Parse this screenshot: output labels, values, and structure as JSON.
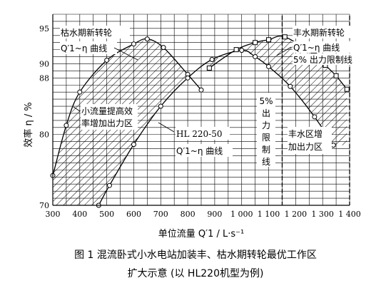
{
  "chart_data": {
    "type": "line",
    "title": "",
    "xlabel": "单位流量 Q′1 / L·s⁻¹",
    "ylabel": "效率 η / %",
    "xlim": [
      300,
      1400
    ],
    "ylim": [
      70,
      97
    ],
    "x_ticks": [
      300,
      400,
      500,
      600,
      700,
      800,
      900,
      1000,
      1100,
      1200,
      1300,
      1400
    ],
    "x_tick_labels": [
      "300",
      "400",
      "500",
      "600",
      "700",
      "800",
      "900",
      "1 000",
      "1 100",
      "1 200",
      "1 300",
      "1 400"
    ],
    "y_ticks": [
      70,
      80,
      88,
      90,
      95
    ],
    "grid": true,
    "series": [
      {
        "name": "枯水期新转轮 Q′1~η 曲线",
        "marker": "circle",
        "points": [
          [
            300,
            74.2
          ],
          [
            350,
            81.3
          ],
          [
            400,
            86.0
          ],
          [
            500,
            90.5
          ],
          [
            600,
            92.8
          ],
          [
            650,
            93.5
          ],
          [
            710,
            92.3
          ],
          [
            800,
            88.5
          ],
          [
            850,
            86.3
          ]
        ]
      },
      {
        "name": "HL 220-50 Q′1~η 曲线",
        "marker": "circle",
        "points": [
          [
            470,
            70.0
          ],
          [
            510,
            72.8
          ],
          [
            600,
            78.6
          ],
          [
            700,
            84.0
          ],
          [
            800,
            88.0
          ],
          [
            890,
            90.6
          ],
          [
            1000,
            91.9
          ],
          [
            1050,
            91.0
          ],
          [
            1100,
            89.6
          ],
          [
            1180,
            86.8
          ],
          [
            1270,
            82.5
          ],
          [
            1340,
            78.5
          ]
        ]
      },
      {
        "name": "丰水期新转轮 Q′1~η 曲线",
        "marker": "square",
        "points": [
          [
            880,
            89.4
          ],
          [
            980,
            92.0
          ],
          [
            1050,
            93.0
          ],
          [
            1100,
            93.4
          ],
          [
            1160,
            93.8
          ],
          [
            1270,
            91.2
          ],
          [
            1310,
            89.8
          ],
          [
            1350,
            88.3
          ],
          [
            1390,
            86.4
          ]
        ]
      }
    ],
    "vertical_limit_lines": [
      {
        "label": "5% 出力限制线",
        "x": 1150
      },
      {
        "label": "5% 出力限制线",
        "x": 1400
      }
    ],
    "annotations": {
      "dry_new_runner_title": "枯水期新转轮",
      "dry_new_runner_curve": "Q′1~η 曲线",
      "wet_new_runner_title": "丰水期新转轮",
      "wet_new_runner_curve": "Q′1~η 曲线",
      "wet_limit_line": "5% 出力限制线",
      "small_flow_line1": "小流量提高效",
      "small_flow_line2": "率增加出力区",
      "hl_model": "HL 220-50",
      "hl_curve": "Q′1~η 曲线",
      "vertical_limit": "5%出力限制线",
      "wet_zone_line1": "丰水区增",
      "wet_zone_line2": "加出力区"
    }
  },
  "caption": {
    "line1": "图 1   混流卧式小水电站加装丰、枯水期转轮最优工作区",
    "line2": "扩大示意 (以 HL220机型为例)"
  }
}
